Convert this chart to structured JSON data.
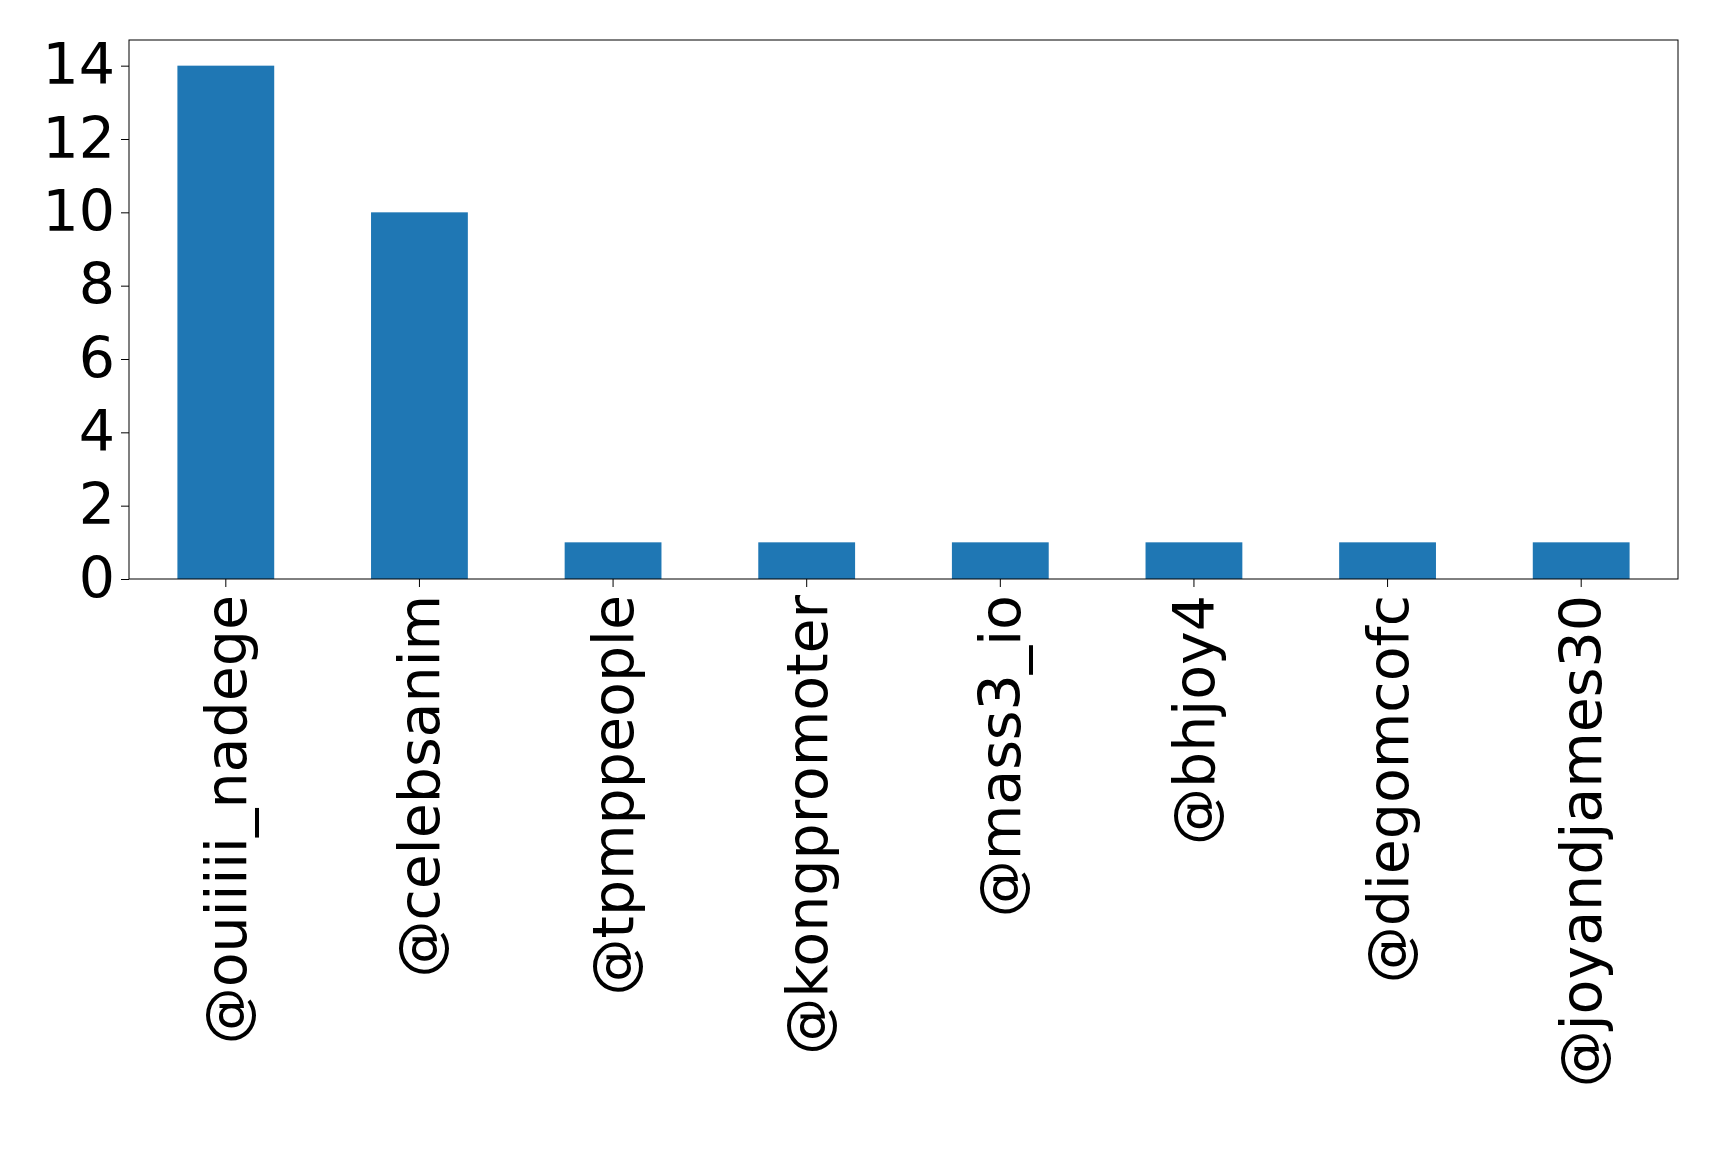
{
  "chart_data": {
    "type": "bar",
    "categories": [
      "@ouiiiii_nadege",
      "@celebsanim",
      "@tpmppeople",
      "@kongpromoter",
      "@mass3_io",
      "@bhjoy4",
      "@diegomcofc",
      "@joyandjames30"
    ],
    "values": [
      14,
      10,
      1,
      1,
      1,
      1,
      1,
      1
    ],
    "color": "#1f77b4",
    "ylim": [
      0,
      14.7
    ],
    "yticks": [
      0,
      2,
      4,
      6,
      8,
      10,
      12,
      14
    ],
    "grid": false
  }
}
